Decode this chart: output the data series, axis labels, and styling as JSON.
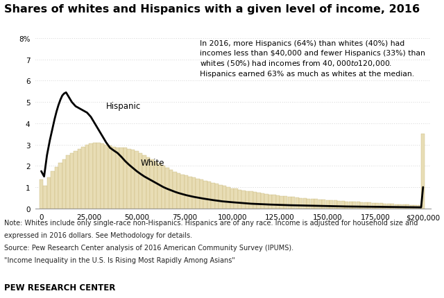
{
  "title": "Shares of whites and Hispanics with a given level of income, 2016",
  "title_fontsize": 11.5,
  "annotation_text": "In 2016, more Hispanics (64%) than whites (40%) had\nincomes less than $40,000 and fewer Hispanics (33%) than\nwhites (50%) had incomes from $40,000 to $120,000.\nHispanics earned 63% as much as whites at the median.",
  "note_line1": "Note: Whites include only single-race non-Hispanics. Hispanics are of any race. Income is adjusted for household size and",
  "note_line2": "expressed in 2016 dollars. See Methodology for details.",
  "note_line3": "Source: Pew Research Center analysis of 2016 American Community Survey (IPUMS).",
  "note_line4": "\"Income Inequality in the U.S. Is Rising Most Rapidly Among Asians\"",
  "source_label": "PEW RESEARCH CENTER",
  "white_label": "White",
  "hispanic_label": "Hispanic",
  "bar_color": "#e8ddb5",
  "bar_edge_color": "#c9b87c",
  "line_color": "#000000",
  "background_color": "#ffffff",
  "ylim": [
    0,
    8
  ],
  "yticks": [
    0,
    1,
    2,
    3,
    4,
    5,
    6,
    7,
    8
  ],
  "ytick_labels": [
    "0",
    "1",
    "2",
    "3",
    "4",
    "5",
    "6",
    "7",
    "8%"
  ],
  "white_bars_x": [
    0,
    2000,
    4000,
    6000,
    8000,
    10000,
    12000,
    14000,
    16000,
    18000,
    20000,
    22000,
    24000,
    26000,
    28000,
    30000,
    32000,
    34000,
    36000,
    38000,
    40000,
    42000,
    44000,
    46000,
    48000,
    50000,
    52000,
    54000,
    56000,
    58000,
    60000,
    62000,
    64000,
    66000,
    68000,
    70000,
    72000,
    74000,
    76000,
    78000,
    80000,
    82000,
    84000,
    86000,
    88000,
    90000,
    92000,
    94000,
    96000,
    98000,
    100000,
    102000,
    104000,
    106000,
    108000,
    110000,
    112000,
    114000,
    116000,
    118000,
    120000,
    122000,
    124000,
    126000,
    128000,
    130000,
    132000,
    134000,
    136000,
    138000,
    140000,
    142000,
    144000,
    146000,
    148000,
    150000,
    152000,
    154000,
    156000,
    158000,
    160000,
    162000,
    164000,
    166000,
    168000,
    170000,
    172000,
    174000,
    176000,
    178000,
    180000,
    182000,
    184000,
    186000,
    188000,
    190000,
    192000,
    194000,
    196000,
    198000,
    200000
  ],
  "white_bars_h": [
    1.35,
    1.05,
    1.45,
    1.75,
    1.95,
    2.15,
    2.3,
    2.5,
    2.6,
    2.7,
    2.8,
    2.9,
    3.0,
    3.05,
    3.1,
    3.1,
    3.05,
    3.0,
    2.95,
    2.9,
    2.85,
    2.85,
    2.85,
    2.8,
    2.75,
    2.7,
    2.6,
    2.5,
    2.4,
    2.3,
    2.2,
    2.1,
    2.0,
    1.9,
    1.8,
    1.7,
    1.65,
    1.6,
    1.55,
    1.5,
    1.45,
    1.4,
    1.35,
    1.3,
    1.25,
    1.2,
    1.15,
    1.1,
    1.05,
    1.0,
    0.95,
    0.92,
    0.88,
    0.85,
    0.82,
    0.79,
    0.76,
    0.73,
    0.71,
    0.68,
    0.65,
    0.63,
    0.61,
    0.59,
    0.57,
    0.55,
    0.53,
    0.51,
    0.49,
    0.48,
    0.46,
    0.45,
    0.43,
    0.42,
    0.4,
    0.39,
    0.38,
    0.37,
    0.36,
    0.35,
    0.33,
    0.32,
    0.31,
    0.3,
    0.29,
    0.28,
    0.27,
    0.26,
    0.25,
    0.24,
    0.23,
    0.22,
    0.21,
    0.2,
    0.19,
    0.18,
    0.17,
    0.16,
    0.15,
    0.15,
    3.5
  ],
  "hispanic_line_x": [
    0,
    1500,
    3000,
    4500,
    6000,
    7000,
    8000,
    9000,
    10000,
    11000,
    12000,
    13000,
    14000,
    15000,
    16000,
    17000,
    18000,
    19000,
    20000,
    21000,
    22000,
    23000,
    24000,
    25000,
    26000,
    27000,
    28000,
    29000,
    30000,
    32000,
    34000,
    36000,
    38000,
    40000,
    42000,
    44000,
    46000,
    48000,
    50000,
    52000,
    54000,
    56000,
    58000,
    60000,
    62000,
    64000,
    66000,
    68000,
    70000,
    72000,
    74000,
    76000,
    78000,
    80000,
    85000,
    90000,
    95000,
    100000,
    110000,
    120000,
    130000,
    140000,
    150000,
    160000,
    170000,
    175000,
    180000,
    185000,
    190000,
    195000,
    199000,
    200000
  ],
  "hispanic_line_y": [
    1.75,
    1.5,
    2.5,
    3.2,
    3.8,
    4.2,
    4.55,
    4.85,
    5.1,
    5.3,
    5.4,
    5.45,
    5.3,
    5.15,
    5.0,
    4.9,
    4.8,
    4.75,
    4.7,
    4.65,
    4.6,
    4.55,
    4.5,
    4.4,
    4.3,
    4.15,
    4.0,
    3.85,
    3.7,
    3.4,
    3.1,
    2.85,
    2.72,
    2.6,
    2.42,
    2.22,
    2.05,
    1.9,
    1.75,
    1.62,
    1.5,
    1.4,
    1.3,
    1.2,
    1.1,
    1.0,
    0.92,
    0.85,
    0.78,
    0.72,
    0.67,
    0.62,
    0.58,
    0.54,
    0.46,
    0.39,
    0.33,
    0.29,
    0.22,
    0.18,
    0.15,
    0.13,
    0.11,
    0.09,
    0.08,
    0.075,
    0.07,
    0.065,
    0.06,
    0.055,
    0.05,
    1.0
  ]
}
